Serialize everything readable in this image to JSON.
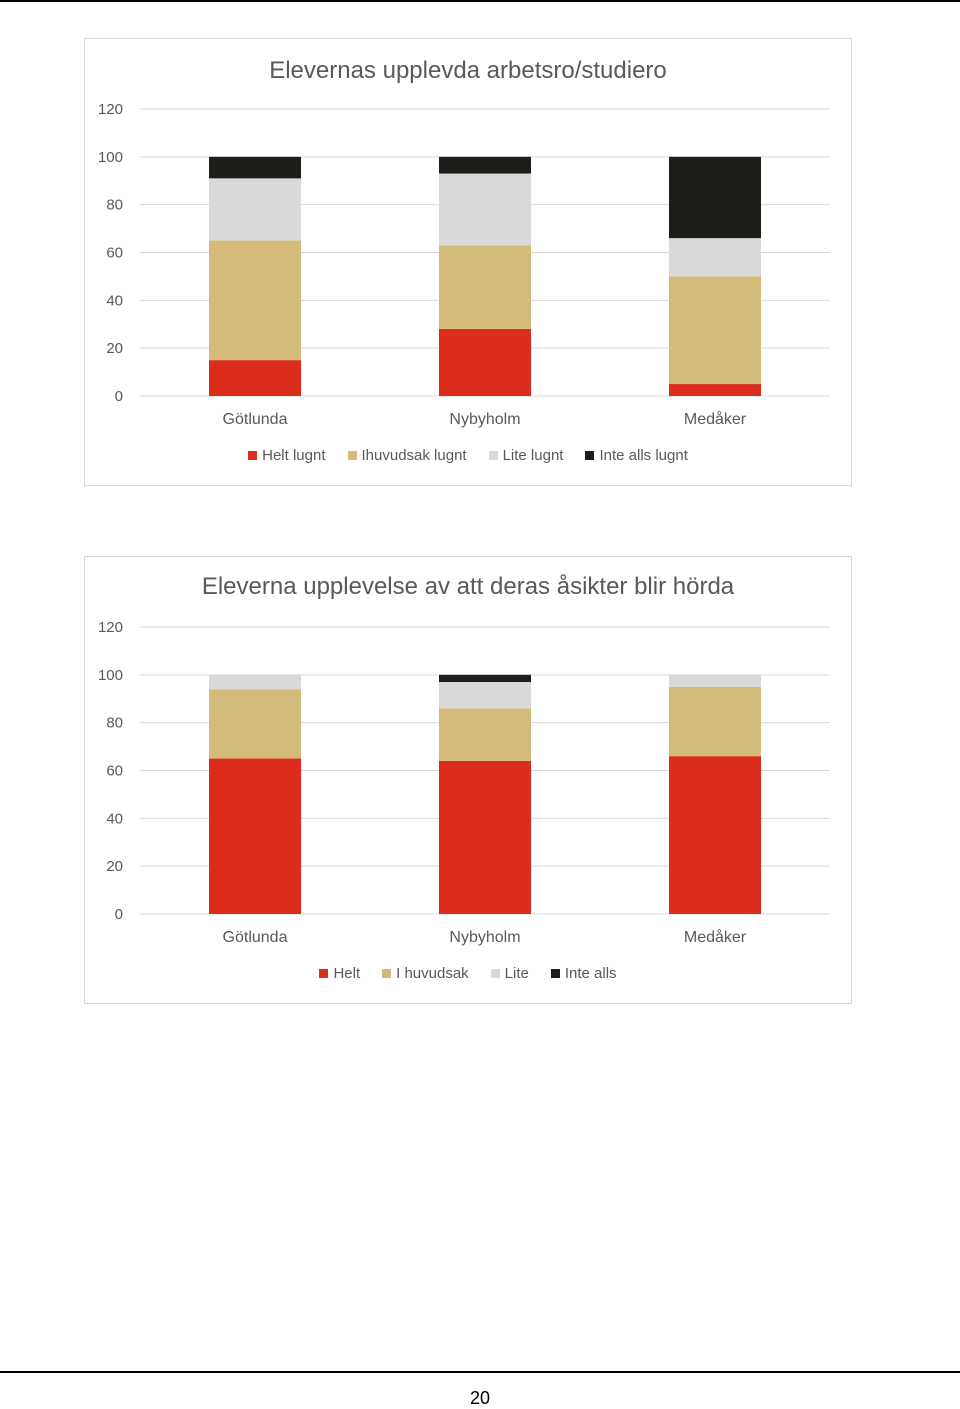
{
  "chart_data": [
    {
      "type": "bar",
      "stacked": true,
      "title": "Elevernas upplevda arbetsro/studiero",
      "categories": [
        "Götlunda",
        "Nybyholm",
        "Medåker"
      ],
      "ylim": [
        0,
        120
      ],
      "yticks": [
        "0",
        "20",
        "40",
        "60",
        "80",
        "100",
        "120"
      ],
      "grid": true,
      "legend_position": "bottom",
      "series": [
        {
          "name": "Helt lugnt",
          "color": "#dc2d1c",
          "values": [
            15,
            28,
            5
          ]
        },
        {
          "name": "Ihuvudsak lugnt",
          "color": "#d5bb7a",
          "values": [
            50,
            35,
            45
          ]
        },
        {
          "name": "Lite lugnt",
          "color": "#d9d9d9",
          "values": [
            26,
            30,
            16
          ]
        },
        {
          "name": "Inte alls lugnt",
          "color": "#1e1d19",
          "values": [
            9,
            7,
            34
          ]
        }
      ]
    },
    {
      "type": "bar",
      "stacked": true,
      "title": "Eleverna upplevelse av att deras åsikter blir hörda",
      "categories": [
        "Götlunda",
        "Nybyholm",
        "Medåker"
      ],
      "ylim": [
        0,
        120
      ],
      "yticks": [
        "0",
        "20",
        "40",
        "60",
        "80",
        "100",
        "120"
      ],
      "grid": true,
      "legend_position": "bottom",
      "series": [
        {
          "name": "Helt",
          "color": "#dc2d1c",
          "values": [
            65,
            64,
            66
          ]
        },
        {
          "name": "I huvudsak",
          "color": "#d5bb7a",
          "values": [
            29,
            22,
            29
          ]
        },
        {
          "name": "Lite",
          "color": "#d9d9d9",
          "values": [
            6,
            11,
            5
          ]
        },
        {
          "name": "Inte alls",
          "color": "#1e1d19",
          "values": [
            0,
            3,
            0
          ]
        }
      ]
    }
  ],
  "page_number": "20"
}
